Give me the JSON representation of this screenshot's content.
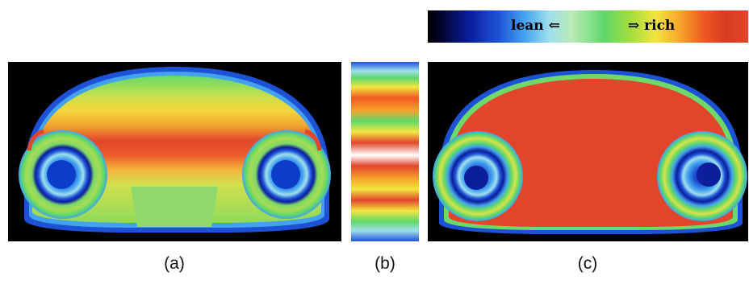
{
  "colorbar": {
    "lean_label": "lean ⇐",
    "rich_label": "⇒ rich"
  },
  "captions": {
    "a": "(a)",
    "b": "(b)",
    "c": "(c)"
  },
  "colors": {
    "background": "#000000",
    "dark_blue": "#0b1e9c",
    "blue": "#1d52d6",
    "cyan": "#43a1ef",
    "light_cyan": "#9fe0ee",
    "green": "#5fd86a",
    "yellow": "#f2e640",
    "orange": "#f7a22a",
    "red": "#e2452a",
    "white": "#ffffff"
  }
}
